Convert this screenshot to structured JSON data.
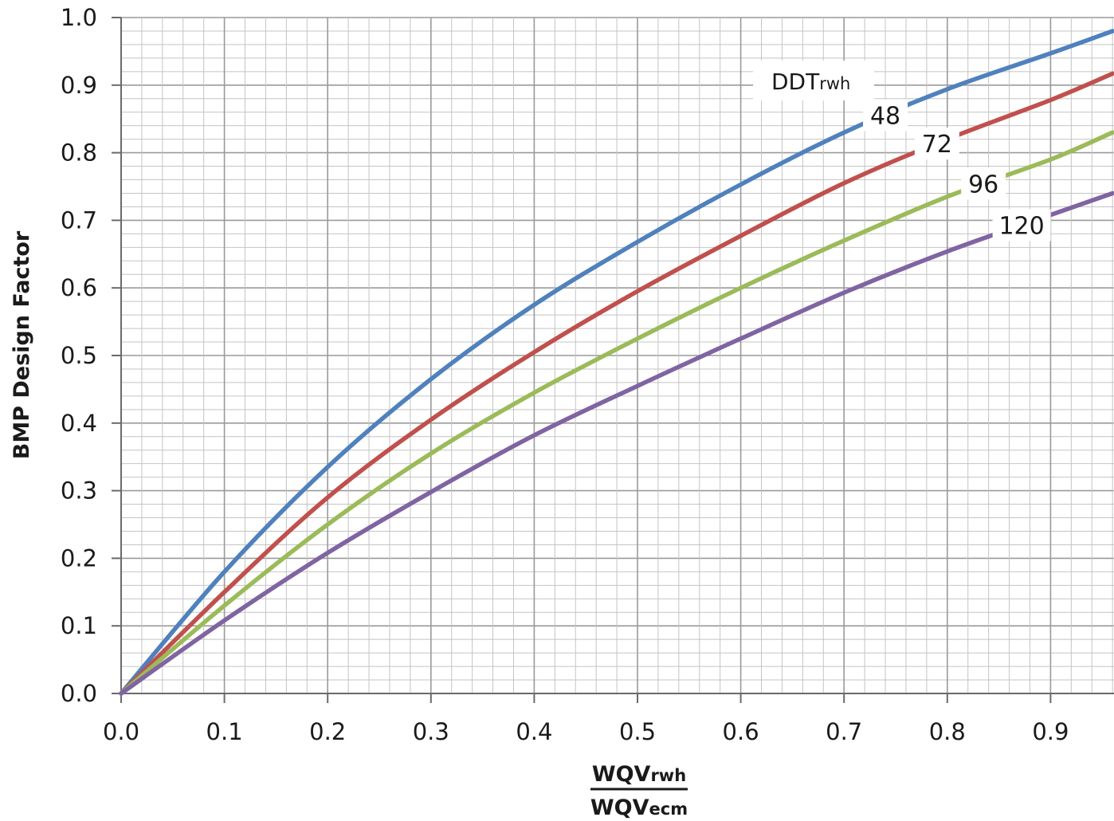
{
  "chart_data": {
    "type": "line",
    "title": "",
    "ylabel": "BMP Design Factor",
    "xlabel": {
      "numerator": {
        "main": "WQV",
        "sub": "rwh"
      },
      "denominator": {
        "main": "WQV",
        "sub": "ecm"
      }
    },
    "xlim": [
      0,
      0.96
    ],
    "ylim": [
      0,
      1.0
    ],
    "x_ticks": [
      "0.0",
      "0.1",
      "0.2",
      "0.3",
      "0.4",
      "0.5",
      "0.6",
      "0.7",
      "0.8",
      "0.9"
    ],
    "y_ticks": [
      "0.0",
      "0.1",
      "0.2",
      "0.3",
      "0.4",
      "0.5",
      "0.6",
      "0.7",
      "0.8",
      "0.9",
      "1.0"
    ],
    "grid": true,
    "legend_title": {
      "main": "DDT",
      "sub": "rwh"
    },
    "x": [
      0.0,
      0.1,
      0.2,
      0.3,
      0.4,
      0.5,
      0.6,
      0.7,
      0.8,
      0.9,
      0.96
    ],
    "series": [
      {
        "name": "48",
        "color": "#4f81bd",
        "values": [
          0.0,
          0.18,
          0.335,
          0.465,
          0.575,
          0.668,
          0.753,
          0.83,
          0.894,
          0.947,
          0.98
        ]
      },
      {
        "name": "72",
        "color": "#c0504d",
        "values": [
          0.0,
          0.15,
          0.29,
          0.405,
          0.505,
          0.595,
          0.677,
          0.755,
          0.82,
          0.878,
          0.917
        ]
      },
      {
        "name": "96",
        "color": "#9bbb59",
        "values": [
          0.0,
          0.13,
          0.25,
          0.355,
          0.445,
          0.525,
          0.6,
          0.67,
          0.735,
          0.79,
          0.83
        ]
      },
      {
        "name": "120",
        "color": "#8064a2",
        "values": [
          0.0,
          0.108,
          0.208,
          0.298,
          0.382,
          0.455,
          0.525,
          0.593,
          0.654,
          0.708,
          0.74
        ]
      }
    ]
  }
}
